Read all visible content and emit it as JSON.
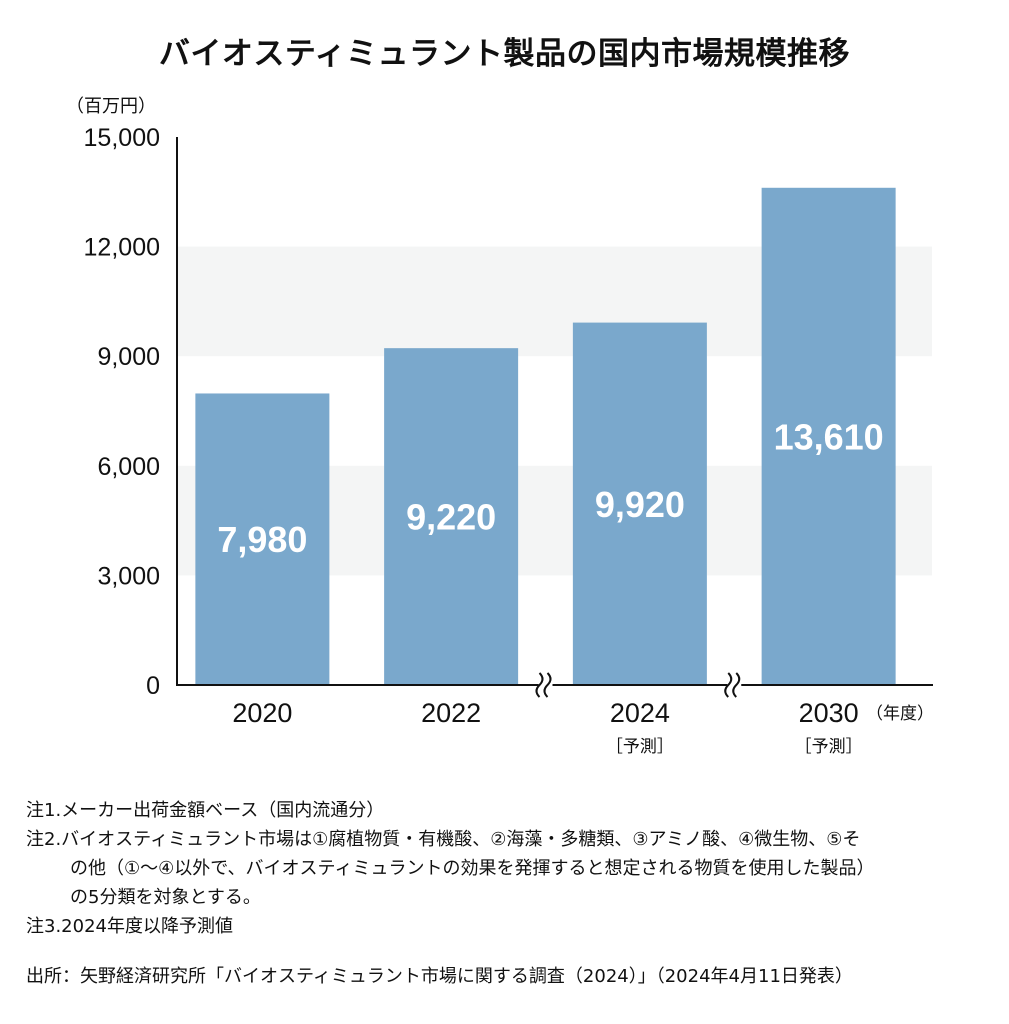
{
  "title": "バイオスティミュラント製品の国内市場規模推移",
  "unit_label": "（百万円）",
  "x_unit_label": "（年度）",
  "forecast_label": "［予測］",
  "chart_data": {
    "type": "bar",
    "categories": [
      "2020",
      "2022",
      "2024",
      "2030"
    ],
    "values": [
      7980,
      9220,
      9920,
      13610
    ],
    "value_labels": [
      "7,980",
      "9,220",
      "9,920",
      "13,610"
    ],
    "forecast": [
      false,
      false,
      true,
      true
    ],
    "axis_break_before": [
      2,
      3
    ],
    "ylim": [
      0,
      15000
    ],
    "yticks": [
      0,
      3000,
      6000,
      9000,
      12000,
      15000
    ],
    "ytick_labels": [
      "0",
      "3,000",
      "6,000",
      "9,000",
      "12,000",
      "15,000"
    ],
    "grid": "alternating horizontal bands",
    "colors": {
      "bar": "#7aa8cc",
      "band": "#f4f5f5",
      "axis": "#111111",
      "label": "#ffffff"
    }
  },
  "notes": {
    "note1": "注1.メーカー出荷金額ベース（国内流通分）",
    "note2_line1": "注2.バイオスティミュラント市場は①腐植物質・有機酸、②海藻・多糖類、③アミノ酸、④微生物、⑤そ",
    "note2_line2": "の他（①～④以外で、バイオスティミュラントの効果を発揮すると想定される物質を使用した製品）",
    "note2_line3": "の5分類を対象とする。",
    "note3": "注3.2024年度以降予測値"
  },
  "source": "出所：矢野経済研究所「バイオスティミュラント市場に関する調査（2024）」（2024年4月11日発表）"
}
